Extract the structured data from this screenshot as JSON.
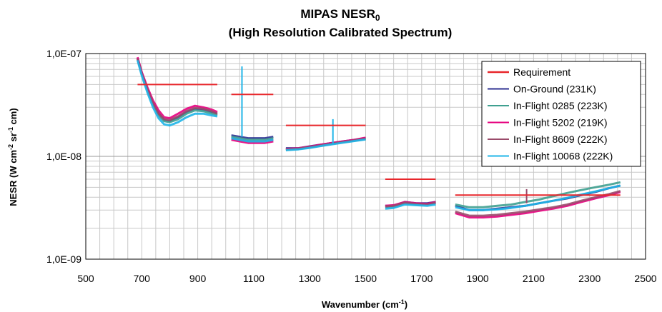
{
  "chart_data": {
    "type": "line",
    "title": "MIPAS NESR",
    "title_subscript": "0",
    "subtitle": "(High Resolution Calibrated Spectrum)",
    "xlabel": "Wavenumber (cm",
    "xlabel_sup": "-1",
    "xlabel_end": ")",
    "ylabel_parts": [
      {
        "text": "NESR (W cm",
        "sup": false
      },
      {
        "text": "-2",
        "sup": true
      },
      {
        "text": " sr",
        "sup": false
      },
      {
        "text": "-1",
        "sup": true
      },
      {
        "text": " cm)",
        "sup": false
      }
    ],
    "xlim": [
      500,
      2500
    ],
    "ylim": [
      1e-09,
      1e-07
    ],
    "y_scale": "log",
    "x_ticks": [
      500,
      700,
      900,
      1100,
      1300,
      1500,
      1700,
      1900,
      2100,
      2300,
      2500
    ],
    "x_tick_labels": [
      "500",
      "700",
      "900",
      "1100",
      "1300",
      "1500",
      "1700",
      "1900",
      "2100",
      "2300",
      "2500"
    ],
    "y_ticks": [
      1e-09,
      1e-08,
      1e-07
    ],
    "y_tick_labels": [
      "1,0E-09",
      "1,0E-08",
      "1,0E-07"
    ],
    "grid": true,
    "legend_position": "top-right",
    "requirement": {
      "name": "Requirement",
      "color": "#e8262b",
      "segments": [
        {
          "x": [
            685,
            970
          ],
          "y": 5e-08
        },
        {
          "x": [
            1020,
            1170
          ],
          "y": 4e-08
        },
        {
          "x": [
            1215,
            1500
          ],
          "y": 2e-08
        },
        {
          "x": [
            1570,
            1750
          ],
          "y": 6e-09
        },
        {
          "x": [
            1820,
            2410
          ],
          "y": 4.2e-09
        }
      ]
    },
    "bands": [
      {
        "x": [
          685,
          700,
          720,
          740,
          760,
          780,
          800,
          830,
          860,
          890,
          920,
          950,
          970
        ],
        "series": {
          "On-Ground (231K)": [
            9e-08,
            6.5e-08,
            4.5e-08,
            3.3e-08,
            2.6e-08,
            2.25e-08,
            2.2e-08,
            2.4e-08,
            2.7e-08,
            2.9e-08,
            2.85e-08,
            2.7e-08,
            2.6e-08
          ],
          "In-Flight 0285 (223K)": [
            8.8e-08,
            6.3e-08,
            4.4e-08,
            3.2e-08,
            2.5e-08,
            2.2e-08,
            2.15e-08,
            2.3e-08,
            2.6e-08,
            2.8e-08,
            2.75e-08,
            2.6e-08,
            2.5e-08
          ],
          "In-Flight 5202 (219K)": [
            9.2e-08,
            6.6e-08,
            4.7e-08,
            3.5e-08,
            2.8e-08,
            2.4e-08,
            2.35e-08,
            2.6e-08,
            2.9e-08,
            3.1e-08,
            3e-08,
            2.85e-08,
            2.7e-08
          ],
          "In-Flight 8609 (222K)": [
            8.9e-08,
            6.4e-08,
            4.5e-08,
            3.3e-08,
            2.6e-08,
            2.3e-08,
            2.25e-08,
            2.45e-08,
            2.75e-08,
            2.95e-08,
            2.9e-08,
            2.75e-08,
            2.6e-08
          ],
          "In-Flight 10068 (222K)": [
            8.6e-08,
            6.1e-08,
            4.2e-08,
            3e-08,
            2.35e-08,
            2.05e-08,
            2e-08,
            2.15e-08,
            2.4e-08,
            2.6e-08,
            2.6e-08,
            2.5e-08,
            2.45e-08
          ]
        }
      },
      {
        "x": [
          1020,
          1050,
          1080,
          1110,
          1140,
          1170
        ],
        "series": {
          "On-Ground (231K)": [
            1.6e-08,
            1.55e-08,
            1.5e-08,
            1.5e-08,
            1.5e-08,
            1.55e-08
          ],
          "In-Flight 0285 (223K)": [
            1.55e-08,
            1.5e-08,
            1.45e-08,
            1.45e-08,
            1.45e-08,
            1.5e-08
          ],
          "In-Flight 5202 (219K)": [
            1.45e-08,
            1.4e-08,
            1.35e-08,
            1.35e-08,
            1.35e-08,
            1.4e-08
          ],
          "In-Flight 8609 (222K)": [
            1.5e-08,
            1.45e-08,
            1.4e-08,
            1.4e-08,
            1.4e-08,
            1.45e-08
          ],
          "In-Flight 10068 (222K)": [
            1.5e-08,
            1.45e-08,
            1.4e-08,
            1.4e-08,
            1.4e-08,
            1.45e-08
          ]
        }
      },
      {
        "x": [
          1215,
          1260,
          1300,
          1340,
          1380,
          1420,
          1460,
          1500
        ],
        "series": {
          "On-Ground (231K)": [
            1.2e-08,
            1.2e-08,
            1.25e-08,
            1.3e-08,
            1.35e-08,
            1.4e-08,
            1.45e-08,
            1.5e-08
          ],
          "In-Flight 0285 (223K)": [
            1.15e-08,
            1.18e-08,
            1.22e-08,
            1.27e-08,
            1.32e-08,
            1.37e-08,
            1.42e-08,
            1.47e-08
          ],
          "In-Flight 5202 (219K)": [
            1.18e-08,
            1.2e-08,
            1.24e-08,
            1.3e-08,
            1.35e-08,
            1.4e-08,
            1.45e-08,
            1.52e-08
          ],
          "In-Flight 8609 (222K)": [
            1.17e-08,
            1.19e-08,
            1.23e-08,
            1.28e-08,
            1.33e-08,
            1.38e-08,
            1.43e-08,
            1.49e-08
          ],
          "In-Flight 10068 (222K)": [
            1.15e-08,
            1.17e-08,
            1.21e-08,
            1.26e-08,
            1.31e-08,
            1.36e-08,
            1.41e-08,
            1.46e-08
          ]
        }
      },
      {
        "x": [
          1570,
          1600,
          1640,
          1680,
          1720,
          1750
        ],
        "series": {
          "On-Ground (231K)": [
            3.3e-09,
            3.3e-09,
            3.6e-09,
            3.5e-09,
            3.5e-09,
            3.6e-09
          ],
          "In-Flight 0285 (223K)": [
            3.2e-09,
            3.2e-09,
            3.5e-09,
            3.4e-09,
            3.4e-09,
            3.5e-09
          ],
          "In-Flight 5202 (219K)": [
            3.3e-09,
            3.35e-09,
            3.6e-09,
            3.5e-09,
            3.45e-09,
            3.6e-09
          ],
          "In-Flight 8609 (222K)": [
            3.25e-09,
            3.3e-09,
            3.55e-09,
            3.45e-09,
            3.4e-09,
            3.55e-09
          ],
          "In-Flight 10068 (222K)": [
            3.1e-09,
            3.15e-09,
            3.4e-09,
            3.35e-09,
            3.3e-09,
            3.4e-09
          ]
        }
      },
      {
        "x": [
          1820,
          1870,
          1920,
          1970,
          2020,
          2070,
          2120,
          2170,
          2220,
          2270,
          2320,
          2370,
          2410
        ],
        "series": {
          "On-Ground (231K)": [
            3.3e-09,
            3e-09,
            3e-09,
            3.1e-09,
            3.2e-09,
            3.3e-09,
            3.5e-09,
            3.7e-09,
            3.9e-09,
            4.2e-09,
            4.5e-09,
            4.9e-09,
            5.2e-09
          ],
          "In-Flight 0285 (223K)": [
            3.4e-09,
            3.2e-09,
            3.2e-09,
            3.3e-09,
            3.4e-09,
            3.6e-09,
            3.8e-09,
            4.1e-09,
            4.4e-09,
            4.7e-09,
            5e-09,
            5.3e-09,
            5.6e-09
          ],
          "In-Flight 5202 (219K)": [
            2.8e-09,
            2.55e-09,
            2.55e-09,
            2.6e-09,
            2.7e-09,
            2.8e-09,
            2.95e-09,
            3.1e-09,
            3.3e-09,
            3.6e-09,
            3.9e-09,
            4.2e-09,
            4.5e-09
          ],
          "In-Flight 8609 (222K)": [
            2.9e-09,
            2.65e-09,
            2.65e-09,
            2.7e-09,
            2.8e-09,
            2.9e-09,
            3.05e-09,
            3.2e-09,
            3.4e-09,
            3.7e-09,
            4e-09,
            4.3e-09,
            4.6e-09
          ],
          "In-Flight 10068 (222K)": [
            3.2e-09,
            3e-09,
            3e-09,
            3.05e-09,
            3.15e-09,
            3.3e-09,
            3.5e-09,
            3.7e-09,
            3.95e-09,
            4.25e-09,
            4.55e-09,
            4.9e-09,
            5.2e-09
          ]
        }
      }
    ],
    "spikes": [
      {
        "x": 1058,
        "y_from": 1.55e-08,
        "y_to": 7.5e-08,
        "series": "In-Flight 10068 (222K)"
      },
      {
        "x": 1383,
        "y_from": 1.3e-08,
        "y_to": 2.3e-08,
        "series": "In-Flight 10068 (222K)"
      },
      {
        "x": 2075,
        "y_from": 3.5e-09,
        "y_to": 4.8e-09,
        "series": "In-Flight 8609 (222K)"
      }
    ],
    "series": [
      {
        "name": "On-Ground (231K)",
        "color": "#2e3192"
      },
      {
        "name": "In-Flight 0285 (223K)",
        "color": "#3fa090"
      },
      {
        "name": "In-Flight 5202 (219K)",
        "color": "#e6007e"
      },
      {
        "name": "In-Flight 8609 (222K)",
        "color": "#9a4a6a"
      },
      {
        "name": "In-Flight 10068 (222K)",
        "color": "#1fb5e8"
      }
    ],
    "legend_entries": [
      "Requirement",
      "On-Ground (231K)",
      "In-Flight 0285 (223K)",
      "In-Flight 5202 (219K)",
      "In-Flight 8609 (222K)",
      "In-Flight 10068 (222K)"
    ]
  }
}
